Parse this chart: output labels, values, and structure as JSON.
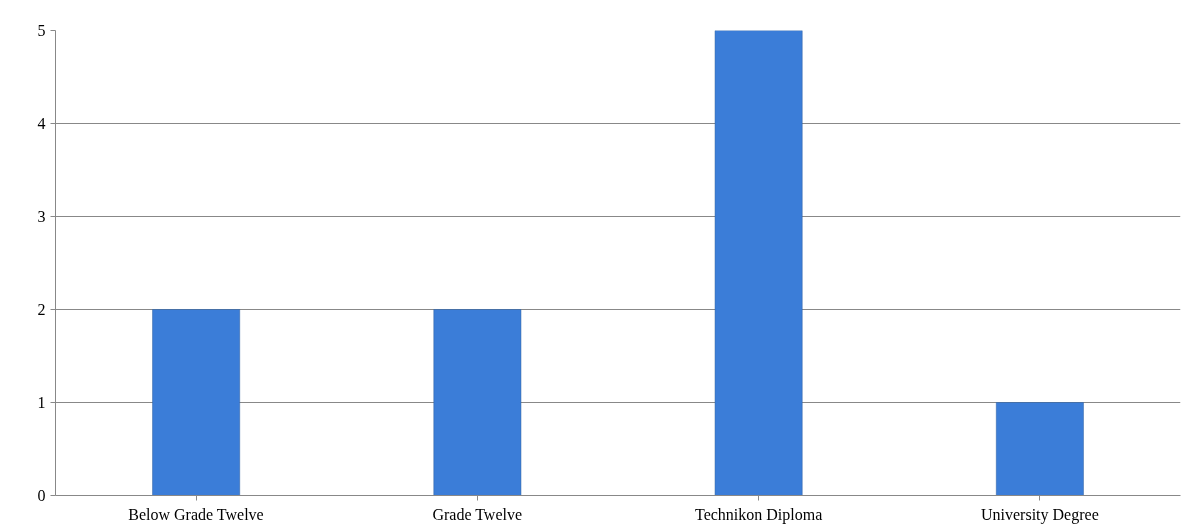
{
  "chart_data": {
    "type": "bar",
    "categories": [
      "Below Grade Twelve",
      "Grade Twelve",
      "Technikon Diploma",
      "University Degree"
    ],
    "values": [
      2,
      2,
      5,
      1
    ],
    "color": "#3b7dd8",
    "ylim": [
      0,
      5
    ],
    "yticks": [
      0,
      1,
      2,
      3,
      4,
      5
    ],
    "grid": "y"
  }
}
